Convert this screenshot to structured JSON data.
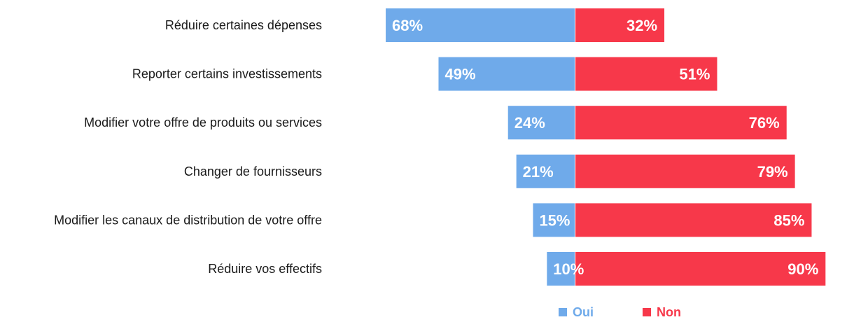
{
  "chart_data": {
    "type": "bar",
    "orientation": "horizontal",
    "stacked": true,
    "categories": [
      "Réduire certaines dépenses",
      "Reporter certains investissements",
      "Modifier votre offre de produits ou services",
      "Changer de fournisseurs",
      "Modifier les canaux de distribution de votre offre",
      "Réduire vos effectifs"
    ],
    "series": [
      {
        "name": "Oui",
        "color": "#6faaea",
        "values": [
          68,
          49,
          24,
          21,
          15,
          10
        ]
      },
      {
        "name": "Non",
        "color": "#f7384a",
        "values": [
          32,
          51,
          76,
          79,
          85,
          90
        ]
      }
    ],
    "value_suffix": "%",
    "title": "",
    "xlabel": "",
    "ylabel": "",
    "grid": false,
    "legend_position": "bottom"
  }
}
